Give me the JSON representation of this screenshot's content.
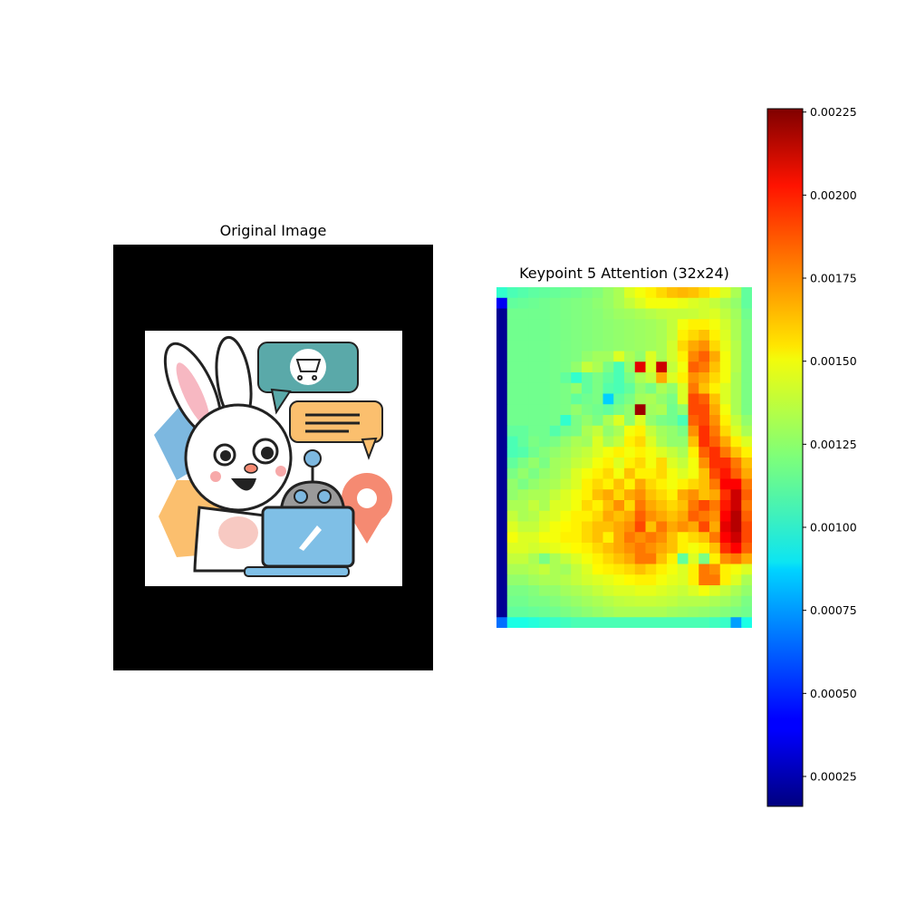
{
  "figure": {
    "left_title": "Original Image",
    "right_title": "Keypoint 5 Attention (32x24)"
  },
  "original_image": {
    "description_icon": "bunny-laptop-illustration-icon",
    "colors": {
      "background": "#000000",
      "canvas": "#ffffff",
      "teal_bubble": "#5aa9a9",
      "orange_bubble": "#fbbf6e",
      "blue_shape": "#7db8e0",
      "salmon_pin": "#f58a72",
      "laptop_blue": "#7fbfe6",
      "robot_gray": "#9a9a9a",
      "ear_pink": "#f7b8c2"
    }
  },
  "chart_data": {
    "type": "heatmap",
    "title": "Keypoint 5 Attention (32x24)",
    "rows": 32,
    "cols": 24,
    "colormap": "jet",
    "vmin": 0.00016,
    "vmax": 0.00226,
    "colorbar_ticks": [
      0.00025,
      0.0005,
      0.00075,
      0.001,
      0.00125,
      0.0015,
      0.00175,
      0.002,
      0.00225
    ],
    "colorbar_tick_labels": [
      "0.00025",
      "0.00050",
      "0.00075",
      "0.00100",
      "0.00125",
      "0.00150",
      "0.00175",
      "0.00200",
      "0.00225"
    ],
    "values": [
      [
        0.00105,
        0.0011,
        0.00112,
        0.00114,
        0.00115,
        0.00116,
        0.00117,
        0.00118,
        0.0012,
        0.00122,
        0.00126,
        0.0013,
        0.0014,
        0.00145,
        0.0015,
        0.00155,
        0.0016,
        0.00162,
        0.0016,
        0.00155,
        0.0015,
        0.0014,
        0.0013,
        0.00115
      ],
      [
        0.0004,
        0.00115,
        0.00116,
        0.00117,
        0.00118,
        0.00119,
        0.0012,
        0.00121,
        0.00122,
        0.00124,
        0.00126,
        0.0013,
        0.00135,
        0.0014,
        0.00145,
        0.00145,
        0.00145,
        0.00143,
        0.0014,
        0.00138,
        0.00135,
        0.0013,
        0.00125,
        0.00115
      ],
      [
        0.0002,
        0.00118,
        0.00118,
        0.00118,
        0.00118,
        0.00119,
        0.0012,
        0.00121,
        0.00122,
        0.00123,
        0.00125,
        0.00127,
        0.00128,
        0.0013,
        0.00132,
        0.00134,
        0.00135,
        0.00135,
        0.00136,
        0.00138,
        0.0014,
        0.00134,
        0.00128,
        0.00118
      ],
      [
        0.0002,
        0.00118,
        0.00118,
        0.00118,
        0.00118,
        0.00119,
        0.0012,
        0.00121,
        0.00122,
        0.00123,
        0.00124,
        0.00125,
        0.00126,
        0.00127,
        0.00128,
        0.0013,
        0.00135,
        0.00145,
        0.0015,
        0.0015,
        0.00145,
        0.00138,
        0.0013,
        0.0012
      ],
      [
        0.0002,
        0.00118,
        0.00118,
        0.00118,
        0.00118,
        0.00119,
        0.0012,
        0.00121,
        0.00122,
        0.00123,
        0.00124,
        0.00125,
        0.00126,
        0.00127,
        0.00128,
        0.0013,
        0.00135,
        0.0015,
        0.00155,
        0.0016,
        0.0015,
        0.0014,
        0.0013,
        0.0012
      ],
      [
        0.0002,
        0.00118,
        0.00118,
        0.00118,
        0.00118,
        0.00119,
        0.0012,
        0.00121,
        0.00122,
        0.00123,
        0.00124,
        0.00125,
        0.00126,
        0.00127,
        0.00128,
        0.0013,
        0.00138,
        0.00155,
        0.00165,
        0.0017,
        0.00155,
        0.00142,
        0.00132,
        0.0012
      ],
      [
        0.0002,
        0.00118,
        0.00118,
        0.00118,
        0.00118,
        0.00119,
        0.0012,
        0.00121,
        0.00125,
        0.00128,
        0.00128,
        0.0014,
        0.0013,
        0.00125,
        0.0014,
        0.0013,
        0.00138,
        0.0015,
        0.00172,
        0.0018,
        0.00165,
        0.00145,
        0.00132,
        0.0012
      ],
      [
        0.0002,
        0.00118,
        0.00118,
        0.00118,
        0.00118,
        0.00119,
        0.0012,
        0.00125,
        0.00135,
        0.0013,
        0.0012,
        0.0011,
        0.00125,
        0.00205,
        0.0014,
        0.0021,
        0.00135,
        0.00145,
        0.0018,
        0.00175,
        0.0016,
        0.00145,
        0.00132,
        0.0012
      ],
      [
        0.0002,
        0.00118,
        0.00118,
        0.00118,
        0.00118,
        0.00119,
        0.00115,
        0.00105,
        0.00115,
        0.0012,
        0.00115,
        0.0011,
        0.0012,
        0.0013,
        0.00135,
        0.00165,
        0.0014,
        0.0015,
        0.0017,
        0.00165,
        0.00155,
        0.00145,
        0.0013,
        0.0012
      ],
      [
        0.0002,
        0.00118,
        0.00118,
        0.00118,
        0.00118,
        0.00119,
        0.0012,
        0.00125,
        0.00115,
        0.0012,
        0.00112,
        0.0011,
        0.00115,
        0.00125,
        0.0012,
        0.0013,
        0.00125,
        0.0014,
        0.00175,
        0.0016,
        0.0015,
        0.0014,
        0.0013,
        0.0012
      ],
      [
        0.0002,
        0.00118,
        0.00118,
        0.00118,
        0.00118,
        0.00119,
        0.0012,
        0.00115,
        0.00118,
        0.0012,
        0.00085,
        0.00115,
        0.0012,
        0.00128,
        0.0013,
        0.00125,
        0.0012,
        0.0014,
        0.00185,
        0.0018,
        0.0016,
        0.0014,
        0.0013,
        0.0012
      ],
      [
        0.0002,
        0.00118,
        0.00118,
        0.00118,
        0.00118,
        0.00119,
        0.0012,
        0.00125,
        0.0012,
        0.00118,
        0.00115,
        0.0012,
        0.00125,
        0.0022,
        0.00128,
        0.0013,
        0.00118,
        0.00125,
        0.00185,
        0.00185,
        0.00165,
        0.00145,
        0.0013,
        0.0012
      ],
      [
        0.0002,
        0.00118,
        0.00118,
        0.00118,
        0.00118,
        0.00119,
        0.00105,
        0.0012,
        0.00125,
        0.0012,
        0.0013,
        0.0014,
        0.00125,
        0.0014,
        0.00125,
        0.0012,
        0.00118,
        0.0011,
        0.0018,
        0.00185,
        0.0017,
        0.0015,
        0.00135,
        0.00125
      ],
      [
        0.0002,
        0.00115,
        0.00115,
        0.00118,
        0.00118,
        0.00112,
        0.00118,
        0.0012,
        0.0013,
        0.00135,
        0.00125,
        0.0013,
        0.00145,
        0.0015,
        0.00135,
        0.00128,
        0.00125,
        0.0012,
        0.0017,
        0.0019,
        0.00175,
        0.00155,
        0.0014,
        0.0013
      ],
      [
        0.0002,
        0.0011,
        0.00115,
        0.0012,
        0.00118,
        0.0012,
        0.00125,
        0.0013,
        0.00128,
        0.0014,
        0.0013,
        0.00135,
        0.0015,
        0.00155,
        0.0014,
        0.0013,
        0.00125,
        0.00125,
        0.0016,
        0.0019,
        0.0018,
        0.00165,
        0.0015,
        0.0014
      ],
      [
        0.0002,
        0.0011,
        0.00112,
        0.00118,
        0.00122,
        0.00125,
        0.00128,
        0.00132,
        0.00135,
        0.0014,
        0.00145,
        0.0015,
        0.00145,
        0.0015,
        0.00145,
        0.0014,
        0.00135,
        0.0013,
        0.0015,
        0.0018,
        0.0019,
        0.00175,
        0.0016,
        0.0015
      ],
      [
        0.0002,
        0.00115,
        0.0012,
        0.00125,
        0.0012,
        0.00128,
        0.0013,
        0.00135,
        0.00138,
        0.00145,
        0.0015,
        0.0014,
        0.0015,
        0.00155,
        0.00145,
        0.00155,
        0.0014,
        0.00135,
        0.00145,
        0.0017,
        0.0019,
        0.0019,
        0.00175,
        0.0016
      ],
      [
        0.0002,
        0.0012,
        0.00125,
        0.0012,
        0.00125,
        0.00128,
        0.00132,
        0.0014,
        0.00145,
        0.0015,
        0.00155,
        0.00145,
        0.0016,
        0.0015,
        0.0015,
        0.00155,
        0.00145,
        0.0014,
        0.00145,
        0.0016,
        0.00185,
        0.00195,
        0.0018,
        0.00165
      ],
      [
        0.0002,
        0.00125,
        0.0012,
        0.00125,
        0.00128,
        0.0013,
        0.00135,
        0.0014,
        0.0015,
        0.00155,
        0.0015,
        0.0016,
        0.0015,
        0.00165,
        0.00155,
        0.0015,
        0.00145,
        0.0015,
        0.00155,
        0.0016,
        0.00175,
        0.002,
        0.002,
        0.00175
      ],
      [
        0.0002,
        0.00125,
        0.00128,
        0.0013,
        0.0013,
        0.00135,
        0.0014,
        0.00145,
        0.0015,
        0.0016,
        0.00165,
        0.00155,
        0.00165,
        0.0017,
        0.0016,
        0.00155,
        0.0015,
        0.00165,
        0.0017,
        0.0016,
        0.00165,
        0.0019,
        0.0021,
        0.0018
      ],
      [
        0.0002,
        0.0013,
        0.0013,
        0.00135,
        0.0013,
        0.0014,
        0.0014,
        0.00145,
        0.00155,
        0.0015,
        0.0016,
        0.0017,
        0.00155,
        0.00175,
        0.00165,
        0.0016,
        0.00155,
        0.0016,
        0.00175,
        0.00185,
        0.00175,
        0.00195,
        0.0021,
        0.00175
      ],
      [
        0.0002,
        0.00135,
        0.0013,
        0.00132,
        0.00138,
        0.0014,
        0.00145,
        0.0015,
        0.0015,
        0.00155,
        0.00165,
        0.0016,
        0.00165,
        0.0018,
        0.0017,
        0.00165,
        0.0016,
        0.00165,
        0.0018,
        0.00175,
        0.0017,
        0.002,
        0.00215,
        0.0018
      ],
      [
        0.0002,
        0.0014,
        0.00135,
        0.00135,
        0.0014,
        0.00145,
        0.00148,
        0.0015,
        0.00155,
        0.0016,
        0.0016,
        0.00165,
        0.0017,
        0.00185,
        0.0016,
        0.00175,
        0.00165,
        0.0017,
        0.00165,
        0.00185,
        0.00165,
        0.00205,
        0.00215,
        0.00185
      ],
      [
        0.0002,
        0.00145,
        0.0014,
        0.0014,
        0.00145,
        0.00145,
        0.0015,
        0.0015,
        0.00155,
        0.0016,
        0.0015,
        0.00165,
        0.00175,
        0.0017,
        0.00175,
        0.0017,
        0.0016,
        0.0015,
        0.00155,
        0.0016,
        0.00175,
        0.002,
        0.0021,
        0.00185
      ],
      [
        0.0002,
        0.0014,
        0.0014,
        0.00138,
        0.0014,
        0.00142,
        0.00145,
        0.00148,
        0.0015,
        0.00155,
        0.0016,
        0.00165,
        0.0017,
        0.00175,
        0.0017,
        0.00165,
        0.0016,
        0.0015,
        0.00145,
        0.0015,
        0.0016,
        0.0019,
        0.002,
        0.0018
      ],
      [
        0.0002,
        0.00135,
        0.00135,
        0.0013,
        0.0012,
        0.0013,
        0.00135,
        0.0014,
        0.00145,
        0.0015,
        0.00155,
        0.0016,
        0.00165,
        0.00175,
        0.00175,
        0.0016,
        0.0015,
        0.00115,
        0.0014,
        0.0012,
        0.0015,
        0.0017,
        0.00175,
        0.00165
      ],
      [
        0.0002,
        0.0013,
        0.0013,
        0.00132,
        0.00135,
        0.0013,
        0.00128,
        0.00135,
        0.0014,
        0.00148,
        0.0015,
        0.00152,
        0.00155,
        0.0016,
        0.00155,
        0.0015,
        0.00145,
        0.0014,
        0.0015,
        0.00175,
        0.0017,
        0.0015,
        0.00145,
        0.0014
      ],
      [
        0.0002,
        0.00125,
        0.00125,
        0.00128,
        0.0013,
        0.0013,
        0.00132,
        0.00135,
        0.00138,
        0.0014,
        0.00142,
        0.00145,
        0.00148,
        0.0015,
        0.0015,
        0.00145,
        0.00142,
        0.0014,
        0.0015,
        0.00175,
        0.00175,
        0.0015,
        0.0014,
        0.0013
      ],
      [
        0.0002,
        0.0012,
        0.0012,
        0.00122,
        0.00125,
        0.00125,
        0.00128,
        0.0013,
        0.00132,
        0.00135,
        0.00138,
        0.0014,
        0.0014,
        0.00142,
        0.00142,
        0.0014,
        0.00138,
        0.00136,
        0.0014,
        0.00145,
        0.0014,
        0.00135,
        0.0013,
        0.00125
      ],
      [
        0.0002,
        0.00118,
        0.00118,
        0.0012,
        0.0012,
        0.00122,
        0.00124,
        0.00126,
        0.00128,
        0.0013,
        0.00132,
        0.00134,
        0.00135,
        0.00136,
        0.00136,
        0.00135,
        0.00134,
        0.00132,
        0.00132,
        0.00132,
        0.0013,
        0.00128,
        0.00125,
        0.0012
      ],
      [
        0.0002,
        0.00115,
        0.00115,
        0.00116,
        0.00117,
        0.00118,
        0.0012,
        0.00122,
        0.00124,
        0.00126,
        0.00128,
        0.0013,
        0.0013,
        0.0013,
        0.0013,
        0.0013,
        0.00128,
        0.00127,
        0.00126,
        0.00125,
        0.00124,
        0.00122,
        0.0012,
        0.00118
      ],
      [
        0.00065,
        0.001,
        0.001,
        0.00102,
        0.00104,
        0.00106,
        0.00108,
        0.0011,
        0.0011,
        0.0011,
        0.0011,
        0.0011,
        0.0011,
        0.0011,
        0.0011,
        0.0011,
        0.0011,
        0.0011,
        0.0011,
        0.0011,
        0.00108,
        0.00106,
        0.00075,
        0.001
      ]
    ]
  }
}
